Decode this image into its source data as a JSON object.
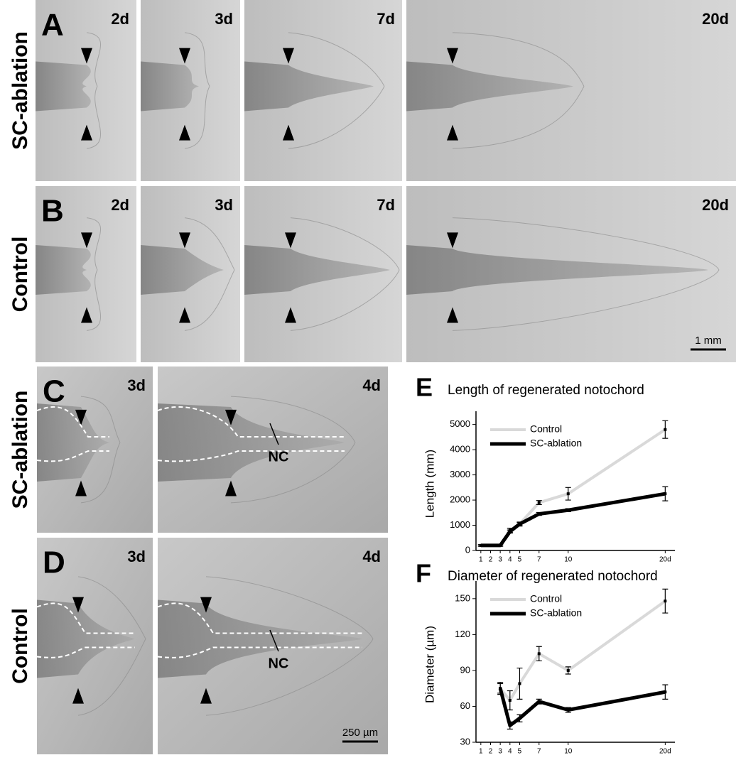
{
  "rows": [
    {
      "letter": "A",
      "label": "SC-ablation",
      "panels": [
        "2d",
        "3d",
        "7d",
        "20d"
      ]
    },
    {
      "letter": "B",
      "label": "Control",
      "panels": [
        "2d",
        "3d",
        "7d",
        "20d"
      ],
      "scale_bar": "1 mm"
    },
    {
      "letter": "C",
      "label": "SC-ablation",
      "panels": [
        "3d",
        "4d"
      ],
      "annotation": "NC"
    },
    {
      "letter": "D",
      "label": "Control",
      "panels": [
        "3d",
        "4d"
      ],
      "annotation": "NC",
      "scale_bar": "250 µm"
    }
  ],
  "chart_data": [
    {
      "type": "line",
      "panel_letter": "E",
      "title": "Length of regenerated notochord",
      "y_label": "Length (mm)",
      "x": [
        1,
        2,
        3,
        4,
        5,
        7,
        10,
        20
      ],
      "xlim": [
        0.5,
        21
      ],
      "xticks": [
        1,
        2,
        3,
        4,
        5,
        7,
        10,
        {
          "value": 20,
          "label": "20d"
        }
      ],
      "ylim": [
        0,
        5300
      ],
      "yticks": [
        0,
        1000,
        2000,
        3000,
        4000,
        5000
      ],
      "legend": "upper left",
      "series": [
        {
          "name": "Control",
          "color": "#d9d9d9",
          "values": [
            200,
            200,
            200,
            800,
            1050,
            1900,
            2250,
            4800
          ],
          "errors": [
            30,
            30,
            30,
            80,
            80,
            80,
            250,
            350
          ]
        },
        {
          "name": "SC-ablation",
          "color": "#000000",
          "values": [
            200,
            200,
            200,
            750,
            1050,
            1450,
            1600,
            2250
          ],
          "errors": [
            30,
            30,
            30,
            60,
            60,
            60,
            60,
            280
          ]
        }
      ]
    },
    {
      "type": "line",
      "panel_letter": "F",
      "title": "Diameter of regenerated notochord",
      "y_label": "Diameter (µm)",
      "x": [
        3,
        4,
        5,
        7,
        10,
        20
      ],
      "xlim": [
        0.5,
        21
      ],
      "xticks": [
        1,
        2,
        3,
        4,
        5,
        7,
        10,
        {
          "value": 20,
          "label": "20d"
        }
      ],
      "ylim": [
        30,
        160
      ],
      "yticks": [
        30,
        60,
        90,
        120,
        150
      ],
      "legend": "upper left",
      "series": [
        {
          "name": "Control",
          "color": "#d9d9d9",
          "values": [
            75,
            65,
            79,
            104,
            90,
            148
          ],
          "errors": [
            5,
            8,
            13,
            6,
            3,
            10
          ]
        },
        {
          "name": "SC-ablation",
          "color": "#000000",
          "values": [
            75,
            44,
            50,
            64,
            57,
            72
          ],
          "errors": [
            4,
            3,
            3,
            2,
            2,
            6
          ]
        }
      ]
    }
  ]
}
